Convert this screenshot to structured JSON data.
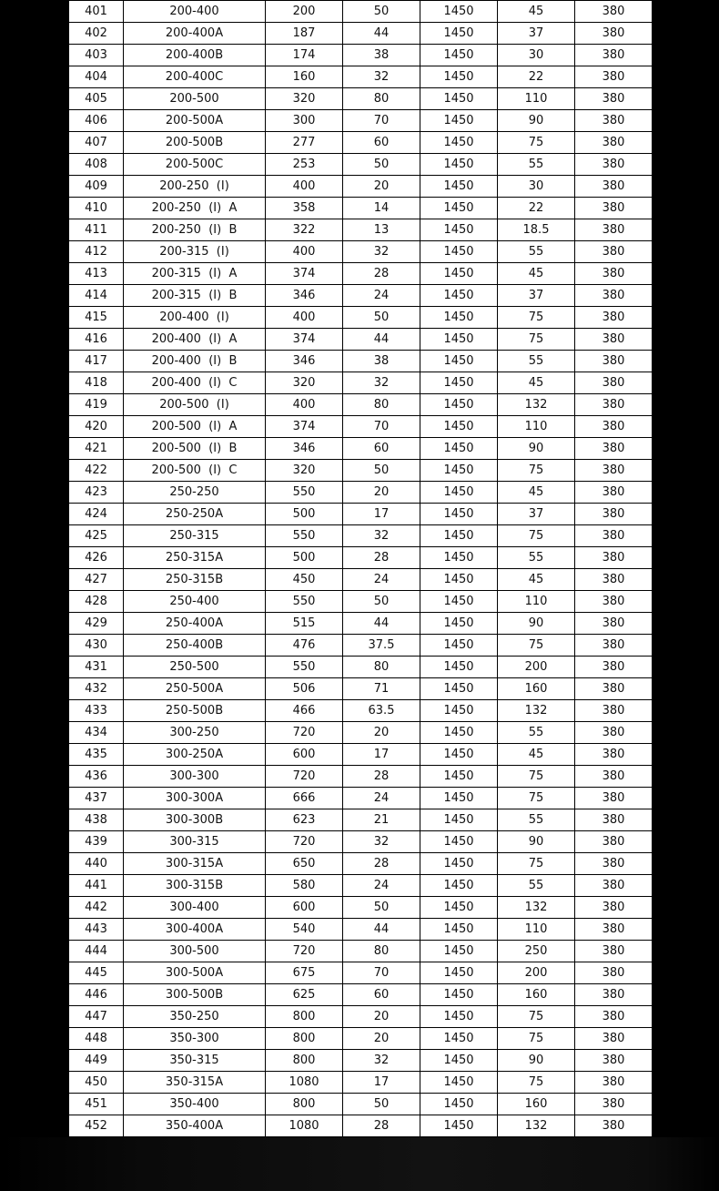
{
  "table": {
    "rows": [
      [
        "401",
        "200-400",
        "200",
        "50",
        "1450",
        "45",
        "380"
      ],
      [
        "402",
        "200-400A",
        "187",
        "44",
        "1450",
        "37",
        "380"
      ],
      [
        "403",
        "200-400B",
        "174",
        "38",
        "1450",
        "30",
        "380"
      ],
      [
        "404",
        "200-400C",
        "160",
        "32",
        "1450",
        "22",
        "380"
      ],
      [
        "405",
        "200-500",
        "320",
        "80",
        "1450",
        "110",
        "380"
      ],
      [
        "406",
        "200-500A",
        "300",
        "70",
        "1450",
        "90",
        "380"
      ],
      [
        "407",
        "200-500B",
        "277",
        "60",
        "1450",
        "75",
        "380"
      ],
      [
        "408",
        "200-500C",
        "253",
        "50",
        "1450",
        "55",
        "380"
      ],
      [
        "409",
        "200-250  (I)",
        "400",
        "20",
        "1450",
        "30",
        "380"
      ],
      [
        "410",
        "200-250  (I)  A",
        "358",
        "14",
        "1450",
        "22",
        "380"
      ],
      [
        "411",
        "200-250  (I)  B",
        "322",
        "13",
        "1450",
        "18.5",
        "380"
      ],
      [
        "412",
        "200-315  (I)",
        "400",
        "32",
        "1450",
        "55",
        "380"
      ],
      [
        "413",
        "200-315  (I)  A",
        "374",
        "28",
        "1450",
        "45",
        "380"
      ],
      [
        "414",
        "200-315  (I)  B",
        "346",
        "24",
        "1450",
        "37",
        "380"
      ],
      [
        "415",
        "200-400  (I)",
        "400",
        "50",
        "1450",
        "75",
        "380"
      ],
      [
        "416",
        "200-400  (I)  A",
        "374",
        "44",
        "1450",
        "75",
        "380"
      ],
      [
        "417",
        "200-400  (I)  B",
        "346",
        "38",
        "1450",
        "55",
        "380"
      ],
      [
        "418",
        "200-400  (I)  C",
        "320",
        "32",
        "1450",
        "45",
        "380"
      ],
      [
        "419",
        "200-500  (I)",
        "400",
        "80",
        "1450",
        "132",
        "380"
      ],
      [
        "420",
        "200-500  (I)  A",
        "374",
        "70",
        "1450",
        "110",
        "380"
      ],
      [
        "421",
        "200-500  (I)  B",
        "346",
        "60",
        "1450",
        "90",
        "380"
      ],
      [
        "422",
        "200-500  (I)  C",
        "320",
        "50",
        "1450",
        "75",
        "380"
      ],
      [
        "423",
        "250-250",
        "550",
        "20",
        "1450",
        "45",
        "380"
      ],
      [
        "424",
        "250-250A",
        "500",
        "17",
        "1450",
        "37",
        "380"
      ],
      [
        "425",
        "250-315",
        "550",
        "32",
        "1450",
        "75",
        "380"
      ],
      [
        "426",
        "250-315A",
        "500",
        "28",
        "1450",
        "55",
        "380"
      ],
      [
        "427",
        "250-315B",
        "450",
        "24",
        "1450",
        "45",
        "380"
      ],
      [
        "428",
        "250-400",
        "550",
        "50",
        "1450",
        "110",
        "380"
      ],
      [
        "429",
        "250-400A",
        "515",
        "44",
        "1450",
        "90",
        "380"
      ],
      [
        "430",
        "250-400B",
        "476",
        "37.5",
        "1450",
        "75",
        "380"
      ],
      [
        "431",
        "250-500",
        "550",
        "80",
        "1450",
        "200",
        "380"
      ],
      [
        "432",
        "250-500A",
        "506",
        "71",
        "1450",
        "160",
        "380"
      ],
      [
        "433",
        "250-500B",
        "466",
        "63.5",
        "1450",
        "132",
        "380"
      ],
      [
        "434",
        "300-250",
        "720",
        "20",
        "1450",
        "55",
        "380"
      ],
      [
        "435",
        "300-250A",
        "600",
        "17",
        "1450",
        "45",
        "380"
      ],
      [
        "436",
        "300-300",
        "720",
        "28",
        "1450",
        "75",
        "380"
      ],
      [
        "437",
        "300-300A",
        "666",
        "24",
        "1450",
        "75",
        "380"
      ],
      [
        "438",
        "300-300B",
        "623",
        "21",
        "1450",
        "55",
        "380"
      ],
      [
        "439",
        "300-315",
        "720",
        "32",
        "1450",
        "90",
        "380"
      ],
      [
        "440",
        "300-315A",
        "650",
        "28",
        "1450",
        "75",
        "380"
      ],
      [
        "441",
        "300-315B",
        "580",
        "24",
        "1450",
        "55",
        "380"
      ],
      [
        "442",
        "300-400",
        "600",
        "50",
        "1450",
        "132",
        "380"
      ],
      [
        "443",
        "300-400A",
        "540",
        "44",
        "1450",
        "110",
        "380"
      ],
      [
        "444",
        "300-500",
        "720",
        "80",
        "1450",
        "250",
        "380"
      ],
      [
        "445",
        "300-500A",
        "675",
        "70",
        "1450",
        "200",
        "380"
      ],
      [
        "446",
        "300-500B",
        "625",
        "60",
        "1450",
        "160",
        "380"
      ],
      [
        "447",
        "350-250",
        "800",
        "20",
        "1450",
        "75",
        "380"
      ],
      [
        "448",
        "350-300",
        "800",
        "20",
        "1450",
        "75",
        "380"
      ],
      [
        "449",
        "350-315",
        "800",
        "32",
        "1450",
        "90",
        "380"
      ],
      [
        "450",
        "350-315A",
        "1080",
        "17",
        "1450",
        "75",
        "380"
      ],
      [
        "451",
        "350-400",
        "800",
        "50",
        "1450",
        "160",
        "380"
      ],
      [
        "452",
        "350-400A",
        "1080",
        "28",
        "1450",
        "132",
        "380"
      ]
    ]
  }
}
